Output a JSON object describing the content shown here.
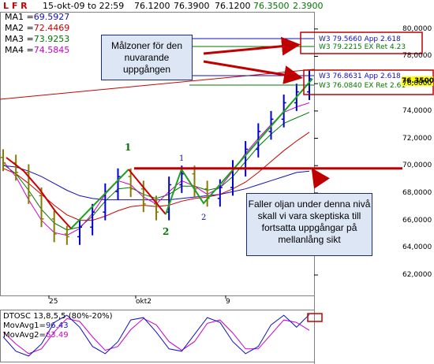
{
  "header": {
    "lfr": "L F R",
    "date": "15-okt-09 to 22:59",
    "open": "76.1200",
    "high": "76.3900",
    "low": "76.1200",
    "close": "76.3500",
    "change": "2.3900"
  },
  "legend": [
    {
      "label": "MA1",
      "value": "69.5927",
      "color": "#1010c0"
    },
    {
      "label": "MA2",
      "value": "72.4469",
      "color": "#cc0000"
    },
    {
      "label": "MA3",
      "value": "73.9253",
      "color": "#007700"
    },
    {
      "label": "MA4",
      "value": "74.5845",
      "color": "#cc00cc"
    }
  ],
  "levels": {
    "w3_upper": "W3 79.5660 App 2.618",
    "w3_upper_ex": "W3 79.2215 EX Ret 4.23",
    "w3_lower": "W3 76.8631 App 2.618",
    "w3_lower_ex": "W3 76.0840 EX Ret 2.61",
    "current_price": "76.3500"
  },
  "callouts": {
    "top": "Målzoner för den nuvarande uppgången",
    "bottom": "Faller oljan under denna nivå skall vi vara skeptiska till fortsatta uppgångar på mellanlång sikt"
  },
  "waves": {
    "w1_green": "1",
    "w2_green": "2",
    "w1_blue": "1",
    "w2_blue": "2"
  },
  "oscillator": {
    "title": "DTOSC 13,8,5,5 (80%-20%)",
    "mov1_label": "MovAvg1",
    "mov1_value": "96.43",
    "mov2_label": "MovAvg2",
    "mov2_value": "63.49"
  },
  "colors": {
    "up_bar": "#0000cc",
    "down_bar": "#8a7a00",
    "ma_blue": "#1010c0",
    "ma_red": "#cc0000",
    "ma_green": "#007700",
    "ma_magenta": "#cc00cc",
    "arrow": "#c00000"
  },
  "chart_data": {
    "type": "line",
    "x_labels": [
      "25",
      "okt2",
      "9"
    ],
    "y_ticks": [
      "80,0000",
      "78,0000",
      "76,0000",
      "74,0000",
      "72,0000",
      "70,0000",
      "68,0000",
      "66,0000",
      "64,0000",
      "62,0000"
    ],
    "ylim": [
      60.5,
      81.2
    ],
    "support_level": 69.8,
    "price_close": [
      70.2,
      69.5,
      67.8,
      66.1,
      65.0,
      64.8,
      65.5,
      66.6,
      68.1,
      69.2,
      68.3,
      67.2,
      66.6,
      68.6,
      69.4,
      68.3,
      67.6,
      68.4,
      69.8,
      71.2,
      72.5,
      73.4,
      74.6,
      75.4,
      76.35
    ],
    "ma_blue": [
      70.0,
      69.9,
      69.6,
      69.2,
      68.7,
      68.2,
      67.8,
      67.6,
      67.5,
      67.5,
      67.5,
      67.5,
      67.5,
      67.5,
      67.6,
      67.7,
      67.8,
      67.9,
      68.1,
      68.3,
      68.6,
      68.9,
      69.2,
      69.5,
      69.6
    ],
    "ma_red": [
      69.8,
      69.4,
      68.7,
      67.9,
      67.1,
      66.4,
      66.0,
      66.0,
      66.3,
      66.7,
      67.0,
      67.1,
      67.0,
      67.1,
      67.4,
      67.6,
      67.7,
      67.9,
      68.3,
      68.8,
      69.5,
      70.3,
      71.1,
      71.8,
      72.45
    ],
    "ma_green": [
      70.1,
      69.4,
      68.2,
      66.8,
      65.8,
      65.3,
      65.5,
      66.3,
      67.4,
      68.3,
      68.4,
      67.9,
      67.6,
      67.9,
      68.5,
      68.5,
      68.2,
      68.4,
      69.2,
      70.3,
      71.4,
      72.3,
      73.1,
      73.5,
      73.9
    ],
    "ma_magenta": [
      70.3,
      69.2,
      67.5,
      66.0,
      65.1,
      64.9,
      65.4,
      66.5,
      67.9,
      68.9,
      68.6,
      67.7,
      67.2,
      68.1,
      68.9,
      68.5,
      67.9,
      68.4,
      69.6,
      70.9,
      72.0,
      73.0,
      73.9,
      74.3,
      74.6
    ],
    "osc_mov1": [
      50,
      20,
      10,
      35,
      80,
      95,
      70,
      30,
      15,
      40,
      85,
      90,
      60,
      25,
      20,
      55,
      90,
      80,
      40,
      15,
      30,
      75,
      95,
      70,
      96.43
    ],
    "osc_mov2": [
      60,
      35,
      15,
      25,
      60,
      88,
      82,
      50,
      22,
      30,
      65,
      88,
      75,
      40,
      22,
      40,
      78,
      85,
      58,
      25,
      25,
      55,
      85,
      80,
      63.49
    ]
  }
}
